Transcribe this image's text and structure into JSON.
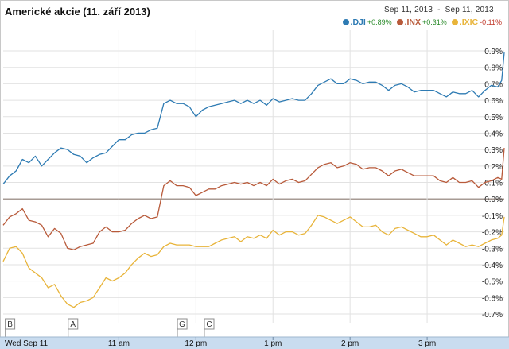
{
  "title": "Americké akcie (11. září 2013)",
  "date_range": {
    "from": "Sep 11, 2013",
    "separator": "-",
    "to": "Sep 11, 2013"
  },
  "colors": {
    "dji": "#2e7bb3",
    "inx": "#b85a3a",
    "ixic": "#e8b43a",
    "grid": "#e2e2e2",
    "zero": "#8a7a70",
    "axis_bg": "#c9dcef"
  },
  "chart_data": {
    "type": "line",
    "title": "Americké akcie (11. září 2013)",
    "xlabel": "",
    "ylabel": "",
    "ylim": [
      -0.75,
      0.95
    ],
    "y_ticks": [
      0.9,
      0.8,
      0.7,
      0.6,
      0.5,
      0.4,
      0.3,
      0.2,
      0.1,
      0.0,
      -0.1,
      -0.2,
      -0.3,
      -0.4,
      -0.5,
      -0.6,
      -0.7
    ],
    "y_tick_labels": [
      "0.9%",
      "0.8%",
      "0.7%",
      "0.6%",
      "0.5%",
      "0.4%",
      "0.3%",
      "0.2%",
      "0.1%",
      "0.0%",
      "-0.1%",
      "-0.2%",
      "-0.3%",
      "-0.4%",
      "-0.5%",
      "-0.6%",
      "-0.7%"
    ],
    "x_label_texts": [
      "Wed Sep 11",
      "11 am",
      "12 pm",
      "1 pm",
      "2 pm",
      "3 pm"
    ],
    "x_label_minutes": [
      0,
      90,
      150,
      210,
      270,
      330
    ],
    "x_range_minutes": [
      0,
      390
    ],
    "event_markers": [
      {
        "label": "B",
        "minute": 1
      },
      {
        "label": "A",
        "minute": 50
      },
      {
        "label": "G",
        "minute": 135
      },
      {
        "label": "C",
        "minute": 156
      }
    ],
    "grid": true,
    "legend_position": "top-right",
    "series": [
      {
        "name": ".DJI",
        "change": "+0.89%",
        "color": "#2e7bb3",
        "x": [
          0,
          5,
          10,
          15,
          20,
          25,
          30,
          35,
          40,
          45,
          50,
          55,
          60,
          65,
          70,
          75,
          80,
          85,
          90,
          95,
          100,
          105,
          110,
          115,
          120,
          125,
          130,
          135,
          140,
          145,
          150,
          155,
          160,
          165,
          170,
          175,
          180,
          185,
          190,
          195,
          200,
          205,
          210,
          215,
          220,
          225,
          230,
          235,
          240,
          245,
          250,
          255,
          260,
          265,
          270,
          275,
          280,
          285,
          290,
          295,
          300,
          305,
          310,
          315,
          320,
          325,
          330,
          335,
          340,
          345,
          350,
          355,
          360,
          365,
          370,
          375,
          380,
          385,
          388,
          390
        ],
        "values": [
          0.09,
          0.14,
          0.17,
          0.24,
          0.22,
          0.26,
          0.2,
          0.24,
          0.28,
          0.31,
          0.3,
          0.27,
          0.26,
          0.22,
          0.25,
          0.27,
          0.28,
          0.32,
          0.36,
          0.36,
          0.39,
          0.4,
          0.4,
          0.42,
          0.43,
          0.58,
          0.6,
          0.58,
          0.58,
          0.56,
          0.5,
          0.54,
          0.56,
          0.57,
          0.58,
          0.59,
          0.6,
          0.58,
          0.6,
          0.58,
          0.6,
          0.57,
          0.61,
          0.59,
          0.6,
          0.61,
          0.6,
          0.6,
          0.64,
          0.69,
          0.71,
          0.73,
          0.7,
          0.7,
          0.73,
          0.72,
          0.7,
          0.71,
          0.71,
          0.69,
          0.66,
          0.69,
          0.7,
          0.68,
          0.65,
          0.66,
          0.66,
          0.66,
          0.64,
          0.62,
          0.65,
          0.64,
          0.64,
          0.66,
          0.62,
          0.66,
          0.69,
          0.68,
          0.72,
          0.89
        ]
      },
      {
        "name": ".INX",
        "change": "+0.31%",
        "color": "#b85a3a",
        "x": [
          0,
          5,
          10,
          15,
          20,
          25,
          30,
          35,
          40,
          45,
          50,
          55,
          60,
          65,
          70,
          75,
          80,
          85,
          90,
          95,
          100,
          105,
          110,
          115,
          120,
          125,
          130,
          135,
          140,
          145,
          150,
          155,
          160,
          165,
          170,
          175,
          180,
          185,
          190,
          195,
          200,
          205,
          210,
          215,
          220,
          225,
          230,
          235,
          240,
          245,
          250,
          255,
          260,
          265,
          270,
          275,
          280,
          285,
          290,
          295,
          300,
          305,
          310,
          315,
          320,
          325,
          330,
          335,
          340,
          345,
          350,
          355,
          360,
          365,
          370,
          375,
          380,
          385,
          388,
          390
        ],
        "values": [
          -0.16,
          -0.11,
          -0.09,
          -0.06,
          -0.13,
          -0.14,
          -0.16,
          -0.23,
          -0.18,
          -0.21,
          -0.3,
          -0.31,
          -0.29,
          -0.28,
          -0.27,
          -0.2,
          -0.17,
          -0.2,
          -0.2,
          -0.19,
          -0.15,
          -0.12,
          -0.1,
          -0.12,
          -0.11,
          0.08,
          0.11,
          0.08,
          0.08,
          0.07,
          0.02,
          0.04,
          0.06,
          0.06,
          0.08,
          0.09,
          0.1,
          0.09,
          0.1,
          0.08,
          0.1,
          0.08,
          0.12,
          0.09,
          0.11,
          0.12,
          0.1,
          0.11,
          0.15,
          0.19,
          0.21,
          0.22,
          0.19,
          0.2,
          0.22,
          0.21,
          0.18,
          0.19,
          0.19,
          0.17,
          0.14,
          0.17,
          0.18,
          0.16,
          0.14,
          0.14,
          0.14,
          0.14,
          0.11,
          0.1,
          0.13,
          0.1,
          0.1,
          0.11,
          0.07,
          0.1,
          0.11,
          0.13,
          0.12,
          0.31
        ]
      },
      {
        "name": ".IXIC",
        "change": "-0.11%",
        "color": "#e8b43a",
        "x": [
          0,
          5,
          10,
          15,
          20,
          25,
          30,
          35,
          40,
          45,
          50,
          55,
          60,
          65,
          70,
          75,
          80,
          85,
          90,
          95,
          100,
          105,
          110,
          115,
          120,
          125,
          130,
          135,
          140,
          145,
          150,
          155,
          160,
          165,
          170,
          175,
          180,
          185,
          190,
          195,
          200,
          205,
          210,
          215,
          220,
          225,
          230,
          235,
          240,
          245,
          250,
          255,
          260,
          265,
          270,
          275,
          280,
          285,
          290,
          295,
          300,
          305,
          310,
          315,
          320,
          325,
          330,
          335,
          340,
          345,
          350,
          355,
          360,
          365,
          370,
          375,
          380,
          385,
          388,
          390
        ],
        "values": [
          -0.38,
          -0.3,
          -0.29,
          -0.33,
          -0.42,
          -0.45,
          -0.48,
          -0.54,
          -0.52,
          -0.59,
          -0.64,
          -0.66,
          -0.63,
          -0.62,
          -0.6,
          -0.54,
          -0.48,
          -0.5,
          -0.48,
          -0.45,
          -0.4,
          -0.36,
          -0.33,
          -0.35,
          -0.34,
          -0.29,
          -0.27,
          -0.28,
          -0.28,
          -0.28,
          -0.29,
          -0.29,
          -0.29,
          -0.27,
          -0.25,
          -0.24,
          -0.23,
          -0.26,
          -0.23,
          -0.24,
          -0.22,
          -0.24,
          -0.19,
          -0.22,
          -0.2,
          -0.2,
          -0.22,
          -0.21,
          -0.16,
          -0.1,
          -0.11,
          -0.13,
          -0.15,
          -0.13,
          -0.11,
          -0.14,
          -0.17,
          -0.17,
          -0.16,
          -0.2,
          -0.22,
          -0.18,
          -0.17,
          -0.19,
          -0.21,
          -0.23,
          -0.23,
          -0.22,
          -0.25,
          -0.28,
          -0.25,
          -0.27,
          -0.29,
          -0.28,
          -0.29,
          -0.27,
          -0.25,
          -0.24,
          -0.22,
          -0.11
        ]
      }
    ]
  }
}
